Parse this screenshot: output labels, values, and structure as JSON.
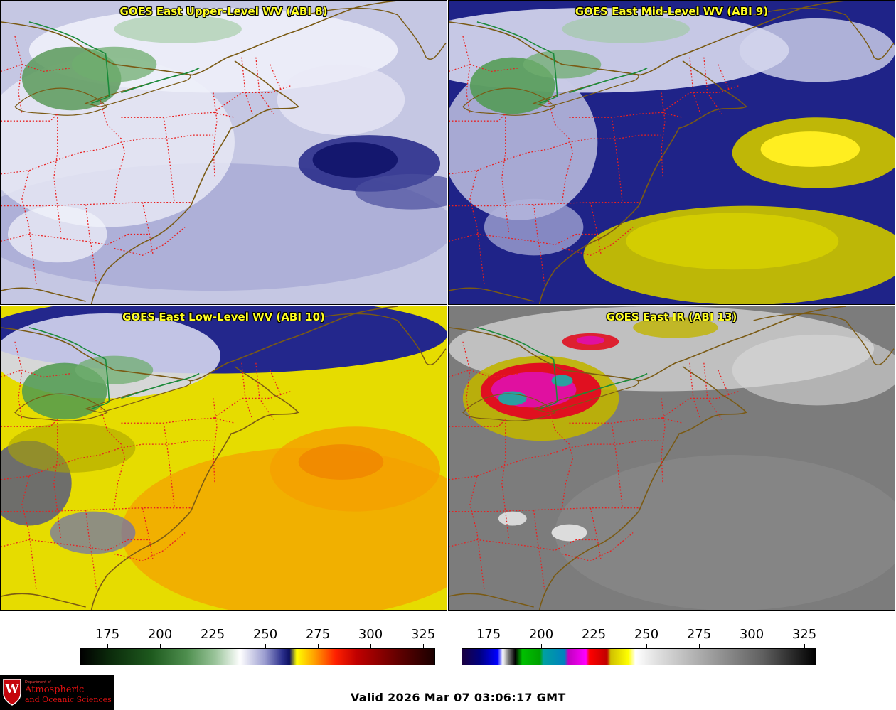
{
  "panels": [
    {
      "title": "GOES East Upper-Level WV (ABI 8)",
      "background": "#c6c8e4",
      "product": "water-vapor"
    },
    {
      "title": "GOES East Mid-Level WV (ABI 9)",
      "background": "#1c1f86",
      "product": "water-vapor"
    },
    {
      "title": "GOES East Low-Level WV (ABI 10)",
      "background": "#e8e000",
      "product": "water-vapor"
    },
    {
      "title": "GOES East IR (ABI 13)",
      "background": "#7c7c7c",
      "product": "infrared"
    }
  ],
  "colorbars": {
    "wv": {
      "ticks": [
        "175",
        "200",
        "225",
        "250",
        "275",
        "300",
        "325"
      ]
    },
    "ir": {
      "ticks": [
        "175",
        "200",
        "225",
        "250",
        "275",
        "300",
        "325"
      ]
    }
  },
  "logo": {
    "small_text": "Department of",
    "line1": "Atmospheric",
    "line2": "and Oceanic Sciences",
    "shield_letter": "W"
  },
  "footer": {
    "valid": "Valid 2026 Mar 07 03:06:17 GMT"
  },
  "colors": {
    "state_borders": "#e82020",
    "coastline": "#7a5a14",
    "intl_border": "#1a8a3a",
    "title_text": "#ffff22"
  }
}
